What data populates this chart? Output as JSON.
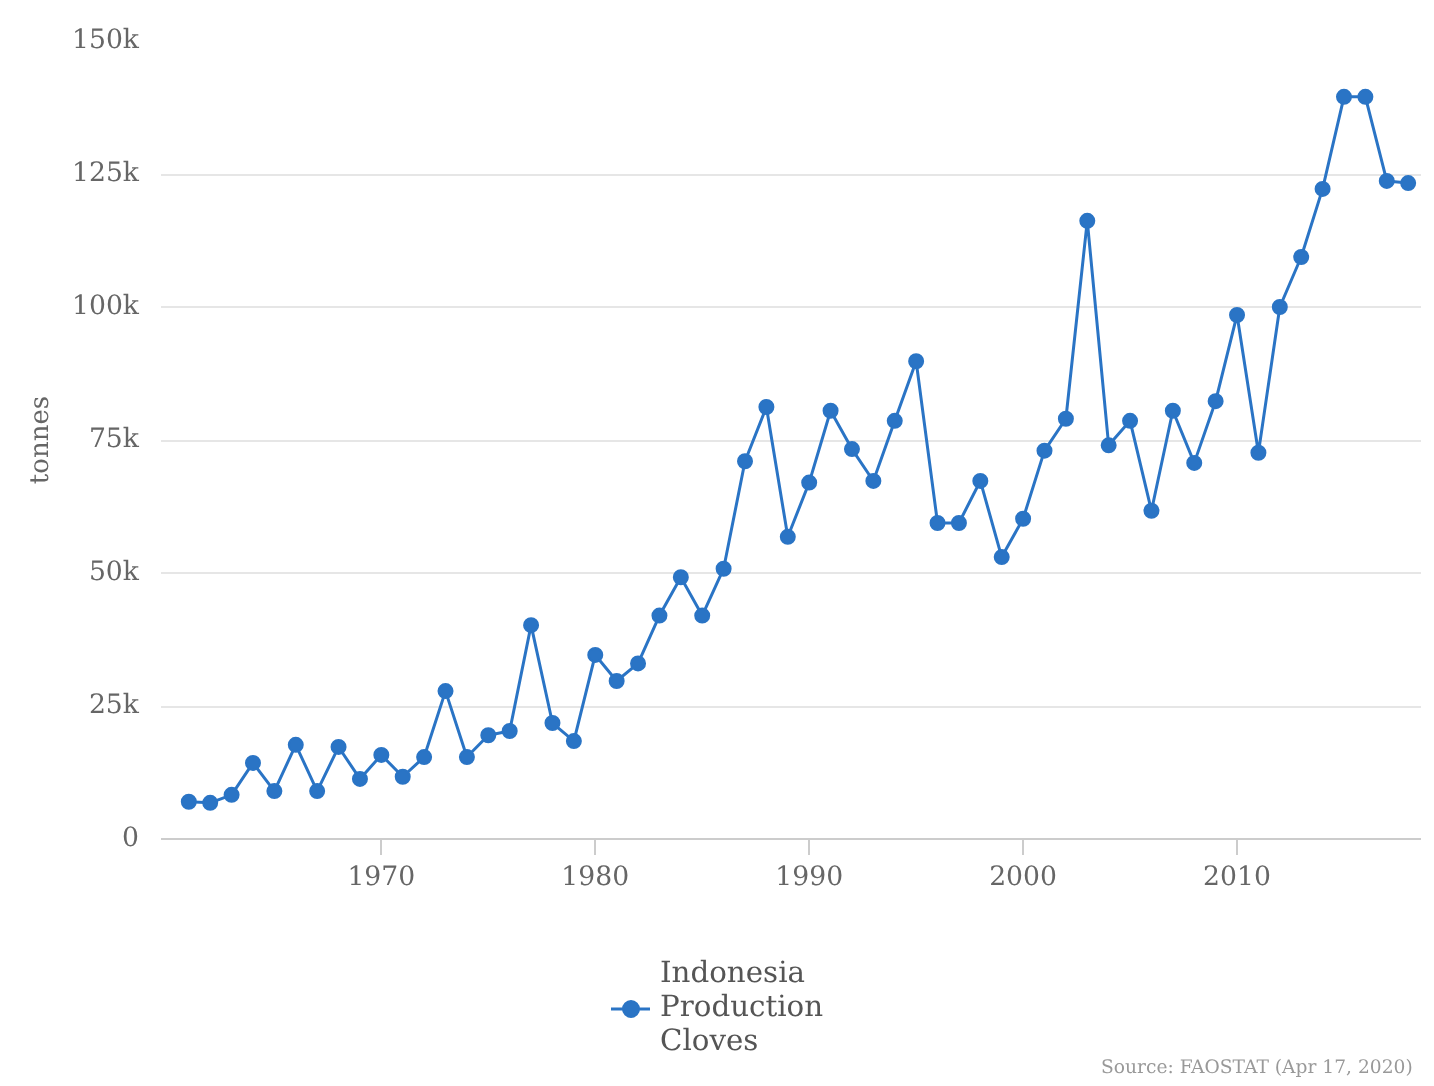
{
  "chart_data": {
    "type": "line",
    "ylabel": "tonnes",
    "x": [
      1961,
      1962,
      1963,
      1964,
      1965,
      1966,
      1967,
      1968,
      1969,
      1970,
      1971,
      1972,
      1973,
      1974,
      1975,
      1976,
      1977,
      1978,
      1979,
      1980,
      1981,
      1982,
      1983,
      1984,
      1985,
      1986,
      1987,
      1988,
      1989,
      1990,
      1991,
      1992,
      1993,
      1994,
      1995,
      1996,
      1997,
      1998,
      1999,
      2000,
      2001,
      2002,
      2003,
      2004,
      2005,
      2006,
      2007,
      2008,
      2009,
      2010,
      2011,
      2012,
      2013,
      2014,
      2015,
      2016,
      2017,
      2018
    ],
    "series": [
      {
        "name": "Indonesia\nProduction\nCloves",
        "color": "#2a74c5",
        "values": [
          7000,
          6800,
          8300,
          14300,
          9000,
          17700,
          9000,
          17300,
          11300,
          15800,
          11700,
          15400,
          27800,
          15400,
          19500,
          20300,
          40200,
          21800,
          18400,
          34600,
          29700,
          33000,
          42000,
          49200,
          42000,
          50800,
          71000,
          81200,
          56800,
          67000,
          80500,
          73300,
          67300,
          78600,
          89800,
          59400,
          59400,
          67300,
          53000,
          60200,
          73000,
          79000,
          116200,
          74000,
          78600,
          61700,
          80500,
          70700,
          82300,
          98500,
          72600,
          100000,
          109400,
          122200,
          139500,
          139500,
          123700,
          123300
        ]
      }
    ],
    "xlim": [
      1959.7,
      2018.6
    ],
    "xticks": [
      1970,
      1980,
      1990,
      2000,
      2010
    ],
    "ylim": [
      0,
      150000
    ],
    "yticks": [
      {
        "value": 0,
        "label": "0"
      },
      {
        "value": 25000,
        "label": "25k"
      },
      {
        "value": 50000,
        "label": "50k"
      },
      {
        "value": 75000,
        "label": "75k"
      },
      {
        "value": 100000,
        "label": "100k"
      },
      {
        "value": 125000,
        "label": "125k"
      },
      {
        "value": 150000,
        "label": "150k"
      }
    ],
    "grid": "y",
    "legend": "bottom",
    "marker": "circle",
    "line_style": "solid",
    "annotations": [
      "Source: FAOSTAT (Apr 17, 2020)"
    ]
  }
}
